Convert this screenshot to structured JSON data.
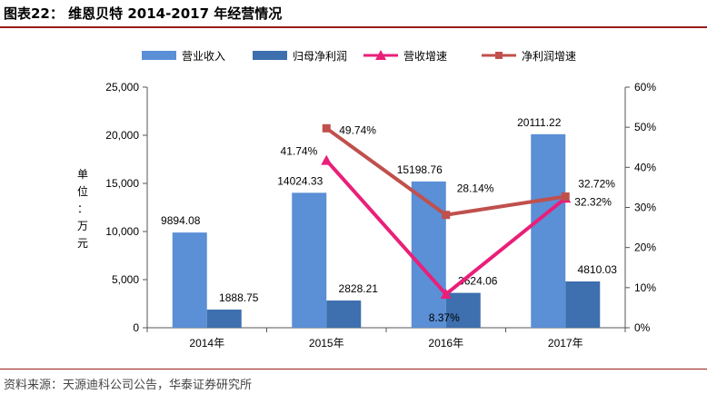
{
  "header": {
    "title": "图表22：  维恩贝特 2014-2017 年经营情况"
  },
  "footer": {
    "source": "资料来源：天源迪科公司公告，华泰证券研究所"
  },
  "chart_data": {
    "type": "bar",
    "categories": [
      "2014年",
      "2015年",
      "2016年",
      "2017年"
    ],
    "series": [
      {
        "name": "营业收入",
        "kind": "bar",
        "axis": "left",
        "color": "#5b8fd6",
        "values": [
          9894.08,
          14024.33,
          15198.76,
          20111.22
        ],
        "labels": [
          "9894.08",
          "14024.33",
          "15198.76",
          "20111.22"
        ]
      },
      {
        "name": "归母净利润",
        "kind": "bar",
        "axis": "left",
        "color": "#3e6fae",
        "values": [
          1888.75,
          2828.21,
          3624.06,
          4810.03
        ],
        "labels": [
          "1888.75",
          "2828.21",
          "3624.06",
          "4810.03"
        ]
      },
      {
        "name": "营收增速",
        "kind": "line",
        "axis": "right",
        "color": "#ea1f79",
        "marker": "triangle",
        "values": [
          null,
          41.74,
          8.37,
          32.32
        ],
        "labels": [
          "",
          "41.74%",
          "8.37%",
          "32.32%"
        ]
      },
      {
        "name": "净利润增速",
        "kind": "line",
        "axis": "right",
        "color": "#c0504d",
        "marker": "square",
        "values": [
          null,
          49.74,
          28.14,
          32.72
        ],
        "labels": [
          "",
          "49.74%",
          "28.14%",
          "32.72%"
        ]
      }
    ],
    "ylabel": "单位：万元",
    "ylim": [
      0,
      25000
    ],
    "yticks": [
      "0",
      "5,000",
      "10,000",
      "15,000",
      "20,000",
      "25,000"
    ],
    "y2lim": [
      0,
      60
    ],
    "y2ticks": [
      "0%",
      "10%",
      "20%",
      "30%",
      "40%",
      "50%",
      "60%"
    ],
    "legend_position": "top"
  }
}
